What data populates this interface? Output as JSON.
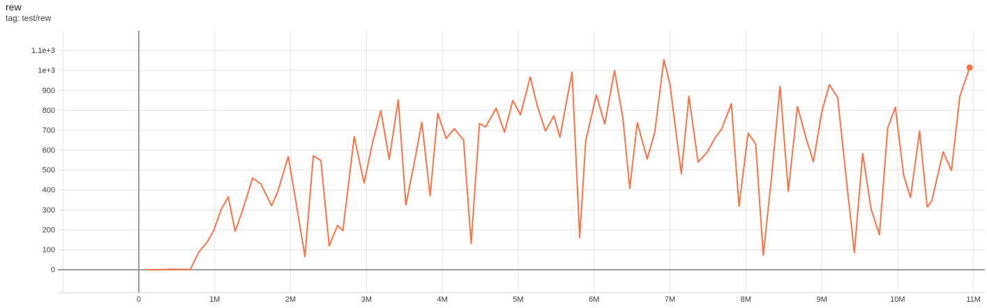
{
  "header": {
    "title": "rew",
    "subtitle": "tag: test/rew"
  },
  "chart_data": {
    "type": "line",
    "title": "rew",
    "tag": "test/rew",
    "series": [
      {
        "name": "test/rew",
        "color": "#ff7043",
        "end_marker": true,
        "points": [
          [
            0.11,
            0
          ],
          [
            0.2,
            0
          ],
          [
            0.3,
            0
          ],
          [
            0.4,
            3
          ],
          [
            0.5,
            2
          ],
          [
            0.6,
            1
          ],
          [
            0.68,
            2
          ],
          [
            0.79,
            88
          ],
          [
            0.9,
            137
          ],
          [
            0.99,
            199
          ],
          [
            1.08,
            298
          ],
          [
            1.18,
            366
          ],
          [
            1.27,
            193
          ],
          [
            1.37,
            300
          ],
          [
            1.5,
            461
          ],
          [
            1.61,
            430
          ],
          [
            1.66,
            391
          ],
          [
            1.75,
            321
          ],
          [
            1.83,
            391
          ],
          [
            1.97,
            568
          ],
          [
            2.08,
            320
          ],
          [
            2.19,
            67
          ],
          [
            2.3,
            572
          ],
          [
            2.4,
            548
          ],
          [
            2.51,
            120
          ],
          [
            2.62,
            222
          ],
          [
            2.69,
            196
          ],
          [
            2.84,
            668
          ],
          [
            2.97,
            435
          ],
          [
            3.07,
            620
          ],
          [
            3.19,
            800
          ],
          [
            3.3,
            554
          ],
          [
            3.42,
            853
          ],
          [
            3.52,
            325
          ],
          [
            3.63,
            535
          ],
          [
            3.73,
            740
          ],
          [
            3.84,
            371
          ],
          [
            3.94,
            785
          ],
          [
            4.05,
            659
          ],
          [
            4.16,
            708
          ],
          [
            4.28,
            651
          ],
          [
            4.38,
            132
          ],
          [
            4.49,
            734
          ],
          [
            4.57,
            717
          ],
          [
            4.71,
            810
          ],
          [
            4.82,
            690
          ],
          [
            4.93,
            850
          ],
          [
            5.03,
            778
          ],
          [
            5.16,
            968
          ],
          [
            5.25,
            825
          ],
          [
            5.36,
            696
          ],
          [
            5.47,
            773
          ],
          [
            5.55,
            665
          ],
          [
            5.63,
            830
          ],
          [
            5.71,
            991
          ],
          [
            5.81,
            161
          ],
          [
            5.89,
            647
          ],
          [
            6.03,
            878
          ],
          [
            6.14,
            731
          ],
          [
            6.27,
            1000
          ],
          [
            6.38,
            760
          ],
          [
            6.47,
            409
          ],
          [
            6.57,
            738
          ],
          [
            6.7,
            556
          ],
          [
            6.8,
            691
          ],
          [
            6.92,
            1055
          ],
          [
            7.0,
            930
          ],
          [
            7.15,
            481
          ],
          [
            7.25,
            871
          ],
          [
            7.37,
            540
          ],
          [
            7.49,
            589
          ],
          [
            7.59,
            659
          ],
          [
            7.68,
            705
          ],
          [
            7.81,
            833
          ],
          [
            7.91,
            319
          ],
          [
            8.03,
            686
          ],
          [
            8.13,
            632
          ],
          [
            8.23,
            73
          ],
          [
            8.34,
            470
          ],
          [
            8.45,
            921
          ],
          [
            8.56,
            394
          ],
          [
            8.68,
            820
          ],
          [
            8.79,
            665
          ],
          [
            8.89,
            542
          ],
          [
            9.0,
            790
          ],
          [
            9.1,
            929
          ],
          [
            9.21,
            865
          ],
          [
            9.32,
            470
          ],
          [
            9.43,
            85
          ],
          [
            9.54,
            583
          ],
          [
            9.65,
            306
          ],
          [
            9.76,
            176
          ],
          [
            9.87,
            711
          ],
          [
            9.97,
            816
          ],
          [
            10.08,
            474
          ],
          [
            10.17,
            362
          ],
          [
            10.29,
            696
          ],
          [
            10.39,
            315
          ],
          [
            10.45,
            345
          ],
          [
            10.6,
            591
          ],
          [
            10.71,
            498
          ],
          [
            10.82,
            870
          ],
          [
            10.95,
            1015
          ]
        ]
      }
    ],
    "xlabel": "",
    "ylabel": "",
    "x_unit_millions": true,
    "x_ticks": [
      {
        "step": -1,
        "label": ""
      },
      {
        "step": 0,
        "label": "0"
      },
      {
        "step": 1,
        "label": "1M"
      },
      {
        "step": 2,
        "label": "2M"
      },
      {
        "step": 3,
        "label": "3M"
      },
      {
        "step": 4,
        "label": "4M"
      },
      {
        "step": 5,
        "label": "5M"
      },
      {
        "step": 6,
        "label": "6M"
      },
      {
        "step": 7,
        "label": "7M"
      },
      {
        "step": 8,
        "label": "8M"
      },
      {
        "step": 9,
        "label": "9M"
      },
      {
        "step": 10,
        "label": "10M"
      },
      {
        "step": 11,
        "label": "11M"
      }
    ],
    "y_ticks": [
      {
        "value": 0,
        "label": "0"
      },
      {
        "value": 100,
        "label": "100"
      },
      {
        "value": 200,
        "label": "200"
      },
      {
        "value": 300,
        "label": "300"
      },
      {
        "value": 400,
        "label": "400"
      },
      {
        "value": 500,
        "label": "500"
      },
      {
        "value": 600,
        "label": "600"
      },
      {
        "value": 700,
        "label": "700"
      },
      {
        "value": 800,
        "label": "800"
      },
      {
        "value": 900,
        "label": "900"
      },
      {
        "value": 1000,
        "label": "1e+3"
      },
      {
        "value": 1100,
        "label": "1.1e+3"
      }
    ],
    "xlim_steps": [
      -1.066,
      11.15
    ],
    "ylim": [
      -115,
      1200
    ],
    "grid": true,
    "legend": "none",
    "colors": {
      "line": "#ff7043",
      "grid": "#e2e2e2",
      "zero_axis": "#999999",
      "tick_text": "#3c3c3c",
      "background": "#ffffff"
    }
  }
}
